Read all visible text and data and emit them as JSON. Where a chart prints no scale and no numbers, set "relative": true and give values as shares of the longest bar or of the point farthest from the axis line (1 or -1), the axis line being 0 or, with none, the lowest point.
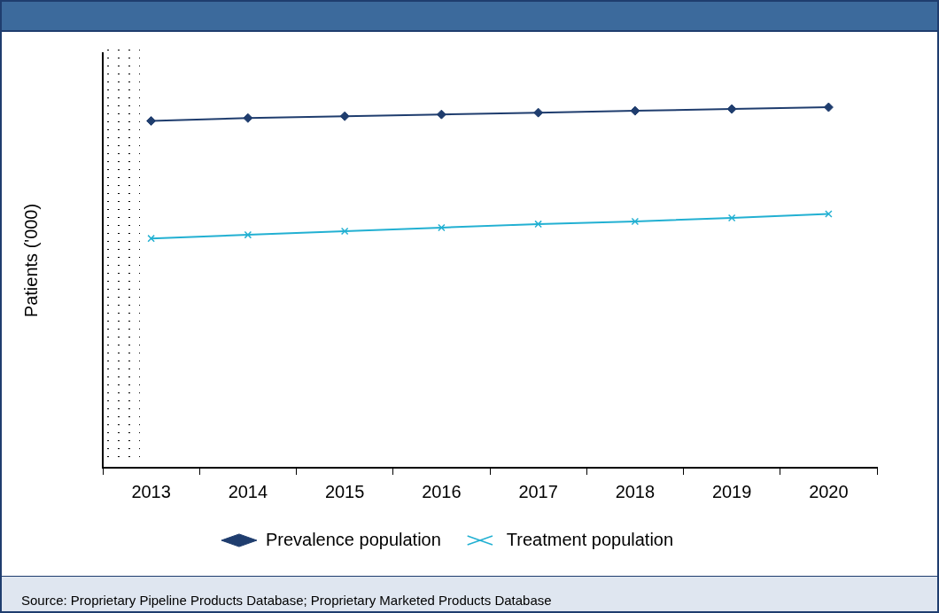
{
  "chart_data": {
    "type": "line",
    "ylabel": "Patients ('000)",
    "relative": true,
    "categories": [
      "2013",
      "2014",
      "2015",
      "2016",
      "2017",
      "2018",
      "2019",
      "2020"
    ],
    "series": [
      {
        "name": "Prevalence population",
        "color": "#1f3d6e",
        "marker": "diamond",
        "values": [
          0.962,
          0.97,
          0.975,
          0.98,
          0.985,
          0.99,
          0.995,
          1
        ]
      },
      {
        "name": "Treatment population",
        "color": "#22b0d2",
        "marker": "cross",
        "values": [
          0.636,
          0.646,
          0.656,
          0.666,
          0.676,
          0.683,
          0.693,
          0.704
        ]
      }
    ],
    "legend": "bottom",
    "grid": false,
    "annotations": [
      "Source: Proprietary Pipeline Products Database; Proprietary Marketed Products Database"
    ]
  }
}
